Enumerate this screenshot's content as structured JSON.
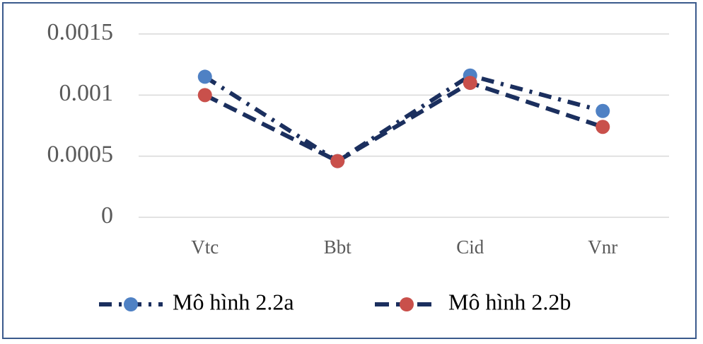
{
  "chart_data": {
    "type": "line",
    "categories": [
      "Vtc",
      "Bbt",
      "Cid",
      "Vnr"
    ],
    "series": [
      {
        "name": "Mô hình 2.2a",
        "color": "#4f81c4",
        "line_color": "#1b2f5e",
        "line_style": "dash-dot",
        "values": [
          0.00115,
          0.00046,
          0.00116,
          0.00087
        ]
      },
      {
        "name": "Mô hình 2.2b",
        "color": "#c9504b",
        "line_color": "#1b2f5e",
        "line_style": "dashed",
        "values": [
          0.001,
          0.00046,
          0.0011,
          0.00074
        ]
      }
    ],
    "ylim": [
      0,
      0.0015
    ],
    "yticks": [
      0,
      0.0005,
      0.001,
      0.0015
    ],
    "grid": true,
    "legend": "bottom"
  }
}
